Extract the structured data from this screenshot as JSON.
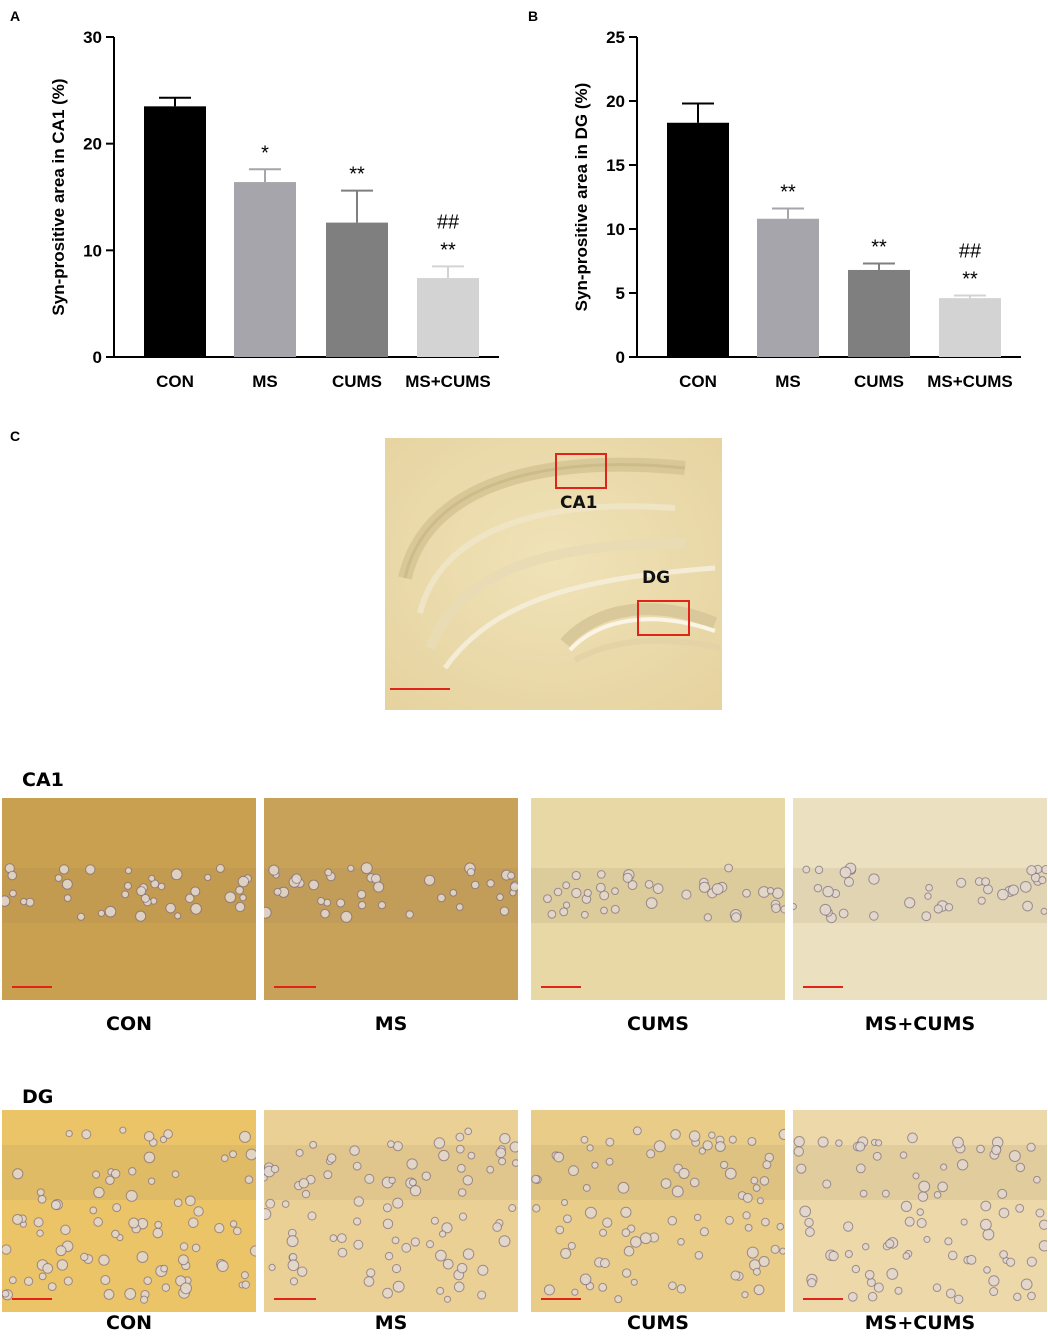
{
  "panels": {
    "a": "A",
    "b": "B",
    "c": "C"
  },
  "colors": {
    "CON": "#000000",
    "MS": "#a5a5ab",
    "CUMS": "#7f7f7f",
    "MS+CUMS": "#d3d3d3",
    "scale_bar": "#e0241a",
    "roi_box": "#e0241a"
  },
  "chart_data": [
    {
      "type": "bar",
      "panel": "A",
      "categories": [
        "CON",
        "MS",
        "CUMS",
        "MS+CUMS"
      ],
      "values": [
        23.5,
        16.4,
        12.6,
        7.4
      ],
      "errors": [
        0.8,
        1.2,
        3.0,
        1.1
      ],
      "significance": [
        "",
        "*",
        "**",
        "##\n**"
      ],
      "xlabel": "",
      "ylabel": "Syn-prositive area in CA1 (%)",
      "ylim": [
        0,
        30
      ],
      "yticks": [
        0,
        10,
        20,
        30
      ],
      "grid": false
    },
    {
      "type": "bar",
      "panel": "B",
      "categories": [
        "CON",
        "MS",
        "CUMS",
        "MS+CUMS"
      ],
      "values": [
        18.3,
        10.8,
        6.8,
        4.6
      ],
      "errors": [
        1.5,
        0.8,
        0.5,
        0.2
      ],
      "significance": [
        "",
        "**",
        "**",
        "##\n**"
      ],
      "xlabel": "",
      "ylabel": "Syn-prositive area in DG (%)",
      "ylim": [
        0,
        25
      ],
      "yticks": [
        0,
        5,
        10,
        15,
        20,
        25
      ],
      "grid": false
    }
  ],
  "overview": {
    "ca1_label": "CA1",
    "dg_label": "DG"
  },
  "regions": {
    "ca1_title": "CA1",
    "dg_title": "DG"
  },
  "micrographs": {
    "ca1_captions": [
      "CON",
      "MS",
      "CUMS",
      "MS+CUMS"
    ],
    "dg_captions": [
      "CON",
      "MS",
      "CUMS",
      "MS+CUMS"
    ],
    "ca1_tints": [
      "#c9a050",
      "#c9a25a",
      "#e8d8a6",
      "#ebe1c0"
    ],
    "dg_tints": [
      "#ebc468",
      "#ebd096",
      "#e9cc88",
      "#ecd8a8"
    ]
  }
}
